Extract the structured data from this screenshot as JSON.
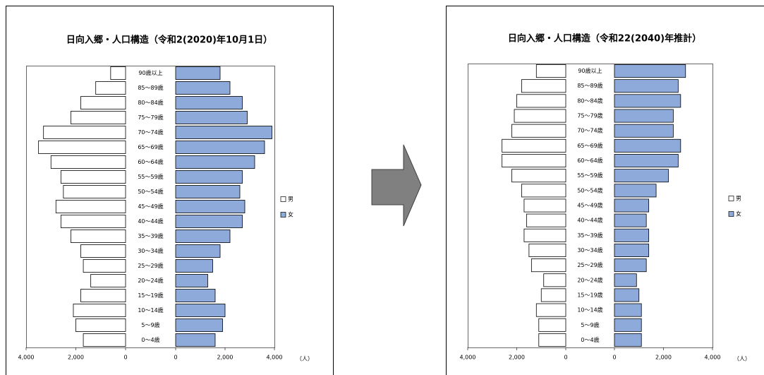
{
  "chart_data": [
    {
      "type": "pyramid",
      "title": "日向入郷・人口構造（令和2(2020)年10月1日）",
      "categories": [
        "0〜4歳",
        "5〜9歳",
        "10〜14歳",
        "15〜19歳",
        "20〜24歳",
        "25〜29歳",
        "30〜34歳",
        "35〜39歳",
        "40〜44歳",
        "45〜49歳",
        "50〜54歳",
        "55〜59歳",
        "60〜64歳",
        "65〜69歳",
        "70〜74歳",
        "75〜79歳",
        "80〜84歳",
        "85〜89歳",
        "90歳以上"
      ],
      "series": [
        {
          "name": "男",
          "color": "#ffffff",
          "values": [
            1700,
            2000,
            2100,
            1800,
            1400,
            1700,
            1800,
            2200,
            2600,
            2800,
            2500,
            2600,
            3000,
            3500,
            3300,
            2200,
            1800,
            1200,
            600
          ]
        },
        {
          "name": "女",
          "color": "#8eaadb",
          "values": [
            1600,
            1900,
            2000,
            1600,
            1300,
            1500,
            1800,
            2200,
            2700,
            2800,
            2600,
            2700,
            3200,
            3600,
            3900,
            2900,
            2700,
            2200,
            1800
          ]
        }
      ],
      "xlim": [
        0,
        4000
      ],
      "xticks": [
        {
          "value": 4000,
          "label": "4,000"
        },
        {
          "value": 2000,
          "label": "2,000"
        },
        0
      ],
      "unit_label": "（人）",
      "legend": "right"
    },
    {
      "type": "pyramid",
      "title": "日向入郷・人口構造（令和22(2040)年推計）",
      "categories": [
        "0〜4歳",
        "5〜9歳",
        "10〜14歳",
        "15〜19歳",
        "20〜24歳",
        "25〜29歳",
        "30〜34歳",
        "35〜39歳",
        "40〜44歳",
        "45〜49歳",
        "50〜54歳",
        "55〜59歳",
        "60〜64歳",
        "65〜69歳",
        "70〜74歳",
        "75〜79歳",
        "80〜84歳",
        "85〜89歳",
        "90歳以上"
      ],
      "series": [
        {
          "name": "男",
          "color": "#ffffff",
          "values": [
            1100,
            1100,
            1200,
            1000,
            900,
            1400,
            1500,
            1700,
            1600,
            1700,
            1800,
            2200,
            2600,
            2600,
            2200,
            2100,
            2000,
            1800,
            1200
          ]
        },
        {
          "name": "女",
          "color": "#8eaadb",
          "values": [
            1100,
            1100,
            1100,
            1000,
            900,
            1300,
            1400,
            1400,
            1300,
            1400,
            1700,
            2200,
            2600,
            2700,
            2400,
            2400,
            2700,
            2600,
            2900
          ]
        }
      ],
      "xlim": [
        0,
        4000
      ],
      "xticks": [
        {
          "value": 4000,
          "label": "4,000"
        },
        {
          "value": 2000,
          "label": "2,000"
        },
        0
      ],
      "unit_label": "（人）",
      "legend": "right"
    }
  ]
}
